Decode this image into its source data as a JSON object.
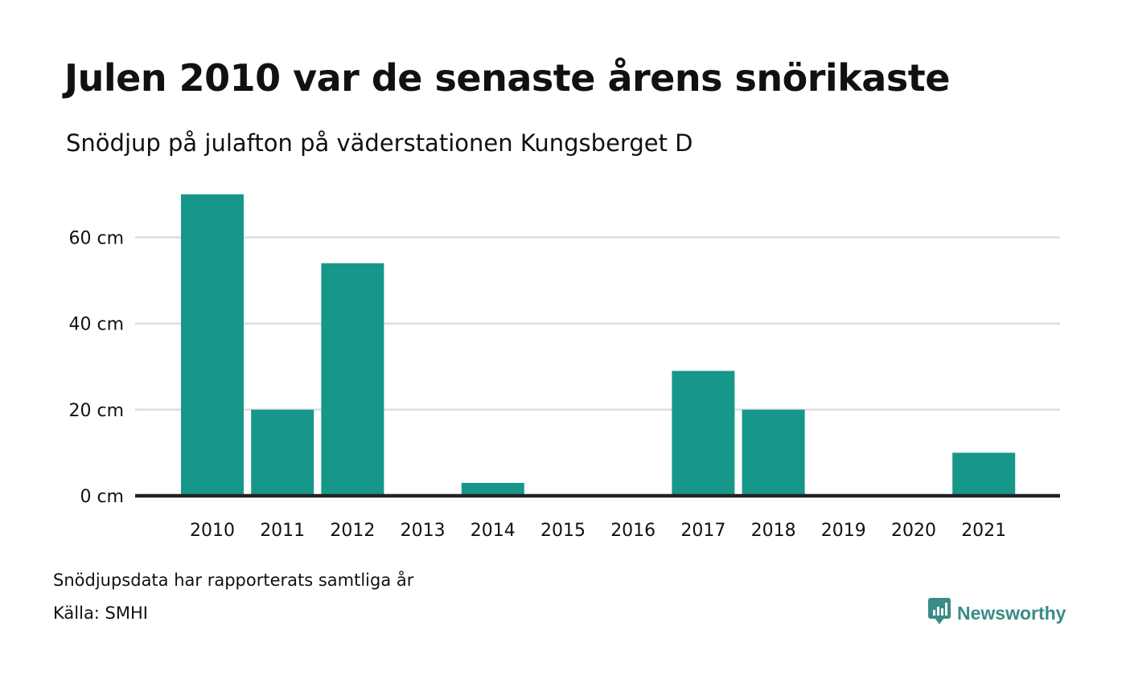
{
  "title": "Julen 2010 var de senaste årens snörikaste",
  "subtitle": "Snödjup på julafton på väderstationen Kungsberget D",
  "notes": {
    "coverage": "Snödjupsdata har rapporterats samtliga år",
    "source": "Källa: SMHI"
  },
  "brand": {
    "name": "Newsworthy",
    "icon": "newsworthy-logo-icon"
  },
  "colors": {
    "bar": "#16978a",
    "grid": "#dddddd",
    "baseline": "#222222",
    "brand": "#3a8c85"
  },
  "chart_data": {
    "type": "bar",
    "categories": [
      "2010",
      "2011",
      "2012",
      "2013",
      "2014",
      "2015",
      "2016",
      "2017",
      "2018",
      "2019",
      "2020",
      "2021"
    ],
    "values": [
      70,
      20,
      54,
      0,
      3,
      0,
      0,
      29,
      20,
      0,
      0,
      10
    ],
    "ylim": [
      0,
      75
    ],
    "yticks": [
      0,
      20,
      40,
      60
    ],
    "ytick_suffix": " cm",
    "grid": true
  }
}
